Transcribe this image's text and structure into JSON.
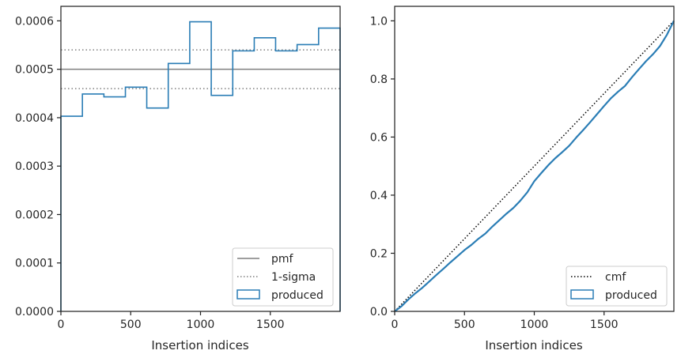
{
  "figure": {
    "background": "#ffffff",
    "axis_color": "#262626",
    "hist_color": "#2a7db5",
    "reference_color": "#7f7f7f",
    "cmf_color": "#000000"
  },
  "chart_data": [
    {
      "type": "line",
      "subtype": "step-histogram",
      "title": "",
      "xlabel": "Insertion indices",
      "ylabel": "",
      "xlim": [
        0,
        2000
      ],
      "ylim": [
        0,
        0.00063
      ],
      "x_ticks": [
        0,
        500,
        1000,
        1500
      ],
      "x_tick_labels": [
        "0",
        "500",
        "1000",
        "1500"
      ],
      "y_ticks": [
        0,
        0.0001,
        0.0002,
        0.0003,
        0.0004,
        0.0005,
        0.0006
      ],
      "y_tick_labels": [
        "0.0000",
        "0.0001",
        "0.0002",
        "0.0003",
        "0.0004",
        "0.0005",
        "0.0006"
      ],
      "grid": false,
      "legend_position": "lower right",
      "bin_edges": [
        0,
        154,
        308,
        462,
        615,
        769,
        923,
        1077,
        1231,
        1385,
        1538,
        1692,
        1846,
        2000
      ],
      "series": [
        {
          "name": "pmf",
          "style": "solid",
          "y": 0.0005
        },
        {
          "name": "1-sigma",
          "style": "dotted",
          "y": [
            0.00046,
            0.00054
          ]
        },
        {
          "name": "produced",
          "style": "step",
          "values": [
            0.000403,
            0.000449,
            0.000443,
            0.000463,
            0.00042,
            0.000512,
            0.000598,
            0.000446,
            0.000538,
            0.000565,
            0.000538,
            0.000551,
            0.000585
          ]
        }
      ]
    },
    {
      "type": "line",
      "subtype": "cumulative",
      "title": "",
      "xlabel": "Insertion indices",
      "ylabel": "",
      "xlim": [
        0,
        2000
      ],
      "ylim": [
        0,
        1.05
      ],
      "x_ticks": [
        0,
        500,
        1000,
        1500
      ],
      "x_tick_labels": [
        "0",
        "500",
        "1000",
        "1500"
      ],
      "y_ticks": [
        0,
        0.2,
        0.4,
        0.6,
        0.8,
        1.0
      ],
      "y_tick_labels": [
        "0.0",
        "0.2",
        "0.4",
        "0.6",
        "0.8",
        "1.0"
      ],
      "grid": false,
      "legend_position": "lower right",
      "series": [
        {
          "name": "cmf",
          "style": "dotted",
          "x": [
            0,
            2000
          ],
          "values": [
            0,
            1.0
          ]
        },
        {
          "name": "produced",
          "style": "step",
          "x": [
            0,
            50,
            100,
            150,
            200,
            250,
            300,
            350,
            400,
            450,
            500,
            550,
            600,
            650,
            700,
            750,
            800,
            850,
            900,
            950,
            1000,
            1050,
            1100,
            1150,
            1200,
            1250,
            1300,
            1350,
            1400,
            1450,
            1500,
            1550,
            1600,
            1650,
            1700,
            1750,
            1800,
            1850,
            1900,
            1950,
            2000
          ],
          "values": [
            0,
            0.018,
            0.042,
            0.063,
            0.082,
            0.104,
            0.126,
            0.147,
            0.169,
            0.19,
            0.211,
            0.229,
            0.25,
            0.268,
            0.292,
            0.314,
            0.336,
            0.356,
            0.381,
            0.41,
            0.448,
            0.476,
            0.503,
            0.527,
            0.548,
            0.57,
            0.598,
            0.624,
            0.651,
            0.679,
            0.707,
            0.734,
            0.756,
            0.776,
            0.806,
            0.834,
            0.861,
            0.885,
            0.913,
            0.952,
            1.0
          ]
        }
      ]
    }
  ]
}
